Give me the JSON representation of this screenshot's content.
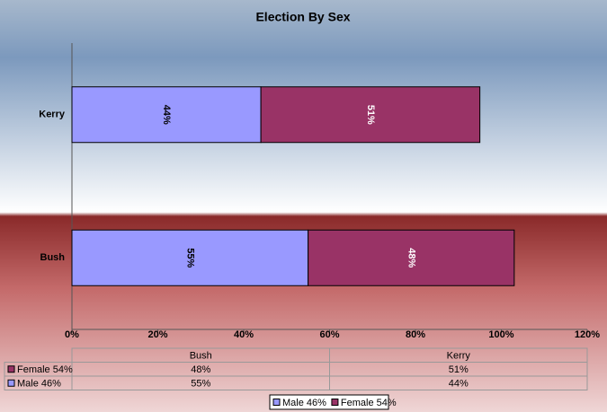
{
  "chart_data": {
    "type": "bar",
    "orientation": "horizontal",
    "stacked": true,
    "title": "Election By Sex",
    "categories": [
      "Bush",
      "Kerry"
    ],
    "series": [
      {
        "name": "Male 46%",
        "color": "#9999ff",
        "values": [
          55,
          44
        ],
        "value_labels": [
          "55%",
          "44%"
        ]
      },
      {
        "name": "Female 54%",
        "color": "#993366",
        "values": [
          48,
          51
        ],
        "value_labels": [
          "48%",
          "51%"
        ]
      }
    ],
    "xlim": [
      0,
      120
    ],
    "xticks": [
      {
        "value": 0,
        "label": "0%"
      },
      {
        "value": 20,
        "label": "20%"
      },
      {
        "value": 40,
        "label": "40%"
      },
      {
        "value": 60,
        "label": "60%"
      },
      {
        "value": 80,
        "label": "80%"
      },
      {
        "value": 100,
        "label": "100%"
      },
      {
        "value": 120,
        "label": "120%"
      }
    ],
    "legend": "bottom",
    "data_table": true
  }
}
